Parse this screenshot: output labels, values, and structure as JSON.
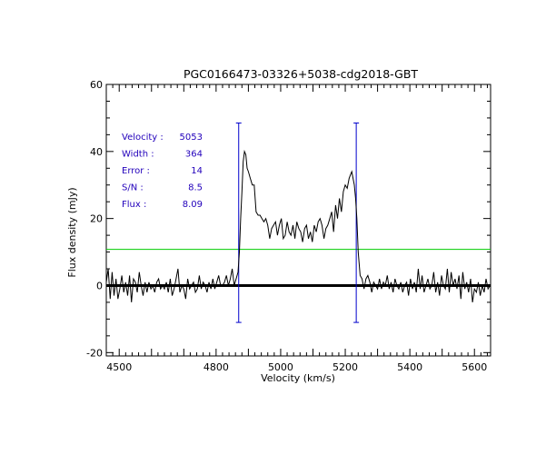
{
  "chart_data": {
    "type": "line",
    "title": "PGC0166473-03326+5038-cdg2018-GBT",
    "xlabel": "Velocity (km/s)",
    "ylabel": "Flux density (mJy)",
    "xlim": [
      4460,
      5650
    ],
    "ylim": [
      -21,
      60
    ],
    "xticks": [
      4500,
      4600,
      4700,
      4800,
      4900,
      5000,
      5100,
      5200,
      5300,
      5400,
      5500,
      5600
    ],
    "xtick_labels": [
      "4500",
      "4800",
      "5000",
      "5200",
      "5400",
      "5600"
    ],
    "xtick_label_values": [
      4500,
      4800,
      5000,
      5200,
      5400,
      5600
    ],
    "yticks": [
      -20,
      0,
      20,
      40,
      60
    ],
    "ytick_labels": [
      "-20",
      "0",
      "20",
      "40",
      "60"
    ],
    "series": [
      {
        "name": "spectrum",
        "color": "#000000",
        "x": [
          4460,
          4466,
          4472,
          4478,
          4484,
          4490,
          4496,
          4502,
          4508,
          4514,
          4520,
          4526,
          4532,
          4538,
          4544,
          4550,
          4556,
          4562,
          4568,
          4574,
          4580,
          4586,
          4592,
          4598,
          4604,
          4610,
          4616,
          4622,
          4628,
          4634,
          4640,
          4646,
          4652,
          4658,
          4664,
          4670,
          4676,
          4682,
          4688,
          4694,
          4700,
          4706,
          4712,
          4718,
          4724,
          4730,
          4736,
          4742,
          4748,
          4754,
          4760,
          4766,
          4772,
          4778,
          4784,
          4790,
          4796,
          4802,
          4808,
          4814,
          4820,
          4826,
          4832,
          4838,
          4844,
          4850,
          4856,
          4862,
          4868,
          4872,
          4876,
          4880,
          4884,
          4888,
          4892,
          4896,
          4900,
          4906,
          4912,
          4918,
          4924,
          4930,
          4936,
          4942,
          4948,
          4954,
          4960,
          4966,
          4972,
          4978,
          4984,
          4990,
          4996,
          5002,
          5008,
          5014,
          5020,
          5026,
          5032,
          5038,
          5044,
          5050,
          5056,
          5062,
          5068,
          5074,
          5080,
          5086,
          5092,
          5098,
          5104,
          5110,
          5116,
          5122,
          5128,
          5134,
          5140,
          5146,
          5152,
          5158,
          5164,
          5170,
          5176,
          5182,
          5188,
          5194,
          5200,
          5206,
          5212,
          5216,
          5220,
          5224,
          5228,
          5232,
          5236,
          5240,
          5246,
          5252,
          5258,
          5264,
          5270,
          5276,
          5282,
          5288,
          5294,
          5300,
          5306,
          5312,
          5318,
          5324,
          5330,
          5336,
          5342,
          5348,
          5354,
          5360,
          5366,
          5372,
          5378,
          5384,
          5390,
          5396,
          5402,
          5408,
          5414,
          5420,
          5426,
          5432,
          5438,
          5444,
          5450,
          5456,
          5462,
          5468,
          5474,
          5480,
          5486,
          5492,
          5498,
          5504,
          5510,
          5516,
          5522,
          5528,
          5534,
          5540,
          5546,
          5552,
          5558,
          5564,
          5570,
          5576,
          5582,
          5588,
          5594,
          5600,
          5606,
          5612,
          5618,
          5624,
          5630,
          5636,
          5642,
          5648
        ],
        "y": [
          1,
          5,
          -4,
          4,
          -3,
          2,
          -4,
          -1,
          3,
          -2,
          1,
          -3,
          3,
          -5,
          2,
          1,
          -2,
          4,
          0,
          -3,
          1,
          -2,
          1,
          -1,
          0,
          -2,
          1,
          2,
          -1,
          0,
          -1,
          1,
          -2,
          2,
          -3,
          -1,
          2,
          5,
          -2,
          0,
          -1,
          -4,
          2,
          -1,
          0,
          1,
          -2,
          -1,
          3,
          -1,
          1,
          0,
          -2,
          1,
          -1,
          2,
          -1,
          1,
          3,
          0,
          0,
          1,
          3,
          0,
          2,
          5,
          0,
          2,
          4,
          10,
          20,
          28,
          37,
          40,
          39,
          35,
          34,
          32,
          30,
          30,
          22,
          21,
          21,
          20,
          19,
          20,
          18,
          14,
          17,
          18,
          19,
          15,
          18,
          20,
          14,
          15,
          19,
          16,
          15,
          18,
          14,
          19,
          17,
          16,
          13,
          17,
          18,
          14,
          16,
          13,
          18,
          16,
          19,
          20,
          18,
          14,
          17,
          18,
          20,
          22,
          16,
          24,
          20,
          26,
          22,
          28,
          30,
          29,
          32,
          33,
          34,
          32,
          30,
          26,
          20,
          10,
          3,
          2,
          -1,
          2,
          3,
          1,
          -2,
          1,
          0,
          -1,
          2,
          -1,
          1,
          0,
          3,
          -1,
          1,
          -2,
          2,
          0,
          -1,
          1,
          -2,
          0,
          1,
          -3,
          2,
          -1,
          1,
          -2,
          5,
          -1,
          3,
          -2,
          0,
          2,
          -1,
          0,
          4,
          -2,
          1,
          -3,
          3,
          0,
          -1,
          5,
          -2,
          4,
          0,
          2,
          -1,
          3,
          -4,
          4,
          -1,
          1,
          -2,
          2,
          -5,
          -1,
          -2,
          1,
          -3,
          0,
          -2,
          2,
          -1,
          0
        ]
      }
    ],
    "hlines": [
      {
        "name": "zero-baseline",
        "y": 0,
        "color": "#000000"
      },
      {
        "name": "threshold-line",
        "y": 10.8,
        "color": "#00cc00"
      }
    ],
    "vlines": [
      {
        "name": "left-width-marker",
        "x": 4870,
        "ymin": -11,
        "ymax": 48.5,
        "color": "#0000cc"
      },
      {
        "name": "right-width-marker",
        "x": 5234,
        "ymin": -11,
        "ymax": 48.5,
        "color": "#0000cc"
      }
    ],
    "annotations": {
      "color": "#2200bb",
      "rows": [
        {
          "label": "Velocity :",
          "value": "5053"
        },
        {
          "label": "Width :",
          "value": "364"
        },
        {
          "label": "Error :",
          "value": "14"
        },
        {
          "label": "S/N :",
          "value": "8.5"
        },
        {
          "label": "Flux :",
          "value": "8.09"
        }
      ]
    }
  }
}
